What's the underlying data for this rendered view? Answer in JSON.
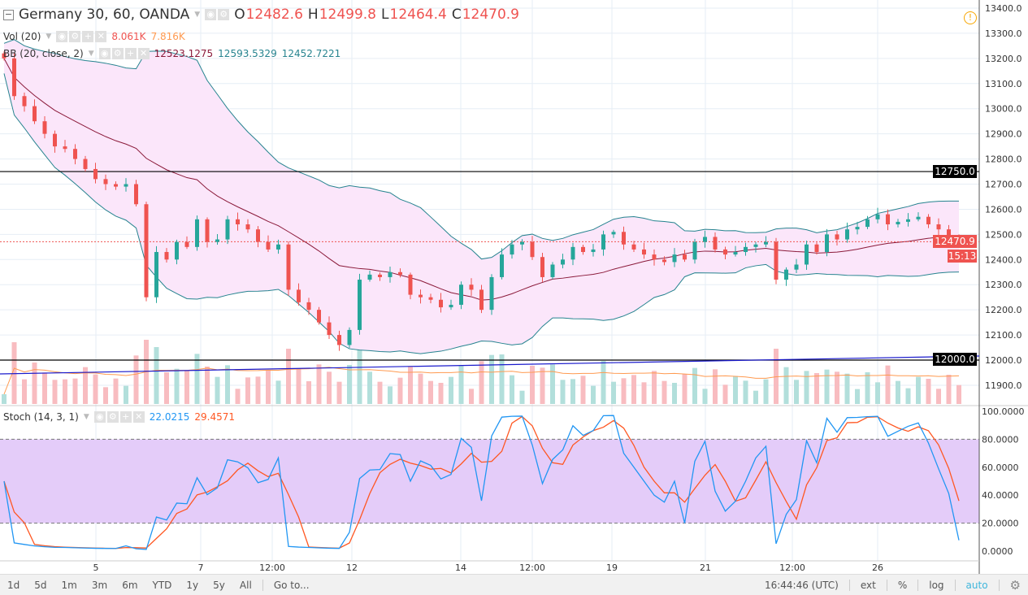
{
  "header": {
    "symbol": "Germany 30, 60, OANDA",
    "o_label": "O",
    "o": "12482.6",
    "h_label": "H",
    "h": "12499.8",
    "l_label": "L",
    "l": "12464.4",
    "c_label": "C",
    "c": "12470.9"
  },
  "vol": {
    "label": "Vol (20)",
    "v1": "8.061K",
    "v2": "7.816K"
  },
  "bb": {
    "label": "BB (20, close, 2)",
    "basis": "12523.1275",
    "upper": "12593.5329",
    "lower": "12452.7221"
  },
  "stoch": {
    "label": "Stoch (14, 3, 1)",
    "k": "22.0215",
    "d": "29.4571"
  },
  "price_axis": {
    "ticks": [
      "13400.0",
      "13300.0",
      "13200.0",
      "13100.0",
      "13000.0",
      "12900.0",
      "12800.0",
      "12700.0",
      "12600.0",
      "12500.0",
      "12400.0",
      "12300.0",
      "12200.0",
      "12100.0",
      "12000.0",
      "11900.0"
    ],
    "hline1": "12750.0",
    "hline2": "12000.0",
    "last": "12470.9",
    "countdown": "15:13"
  },
  "stoch_axis": {
    "ticks": [
      "100.0000",
      "80.0000",
      "60.0000",
      "40.0000",
      "20.0000",
      "0.0000"
    ]
  },
  "time_axis": {
    "ticks": [
      "5",
      "7",
      "12:00",
      "12",
      "14",
      "12:00",
      "19",
      "21",
      "12:00",
      "26"
    ]
  },
  "toolbar": {
    "ranges": [
      "1d",
      "5d",
      "1m",
      "3m",
      "6m",
      "YTD",
      "1y",
      "5y",
      "All"
    ],
    "goto": "Go to...",
    "time": "16:44:46 (UTC)",
    "ext": "ext",
    "pct": "%",
    "log": "log",
    "auto": "auto"
  },
  "colors": {
    "up": "#26a69a",
    "down": "#ef5350",
    "bb_band": "#26838f",
    "bb_basis": "#8b1a3a",
    "stoch_k": "#2196f3",
    "stoch_d": "#ff5722"
  },
  "chart_data": {
    "type": "candlestick",
    "title": "Germany 30, 60, OANDA",
    "ylim": [
      11900,
      13400
    ],
    "close": [
      13200,
      13050,
      13010,
      12950,
      12900,
      12850,
      12840,
      12800,
      12760,
      12720,
      12700,
      12690,
      12700,
      12620,
      12250,
      12430,
      12400,
      12470,
      12450,
      12560,
      12470,
      12480,
      12560,
      12540,
      12520,
      12470,
      12440,
      12460,
      12280,
      12230,
      12200,
      12150,
      12100,
      12060,
      12120,
      12320,
      12340,
      12330,
      12350,
      12340,
      12260,
      12250,
      12240,
      12210,
      12220,
      12300,
      12280,
      12200,
      12330,
      12420,
      12460,
      12470,
      12410,
      12330,
      12380,
      12400,
      12450,
      12430,
      12440,
      12500,
      12510,
      12460,
      12440,
      12420,
      12400,
      12390,
      12420,
      12400,
      12470,
      12490,
      12440,
      12420,
      12430,
      12450,
      12460,
      12470,
      12320,
      12360,
      12380,
      12460,
      12430,
      12500,
      12480,
      12520,
      12530,
      12560,
      12580,
      12540,
      12550,
      12560,
      12570,
      12540,
      12520,
      12490,
      12471
    ],
    "hlines": [
      12750,
      12000
    ]
  }
}
